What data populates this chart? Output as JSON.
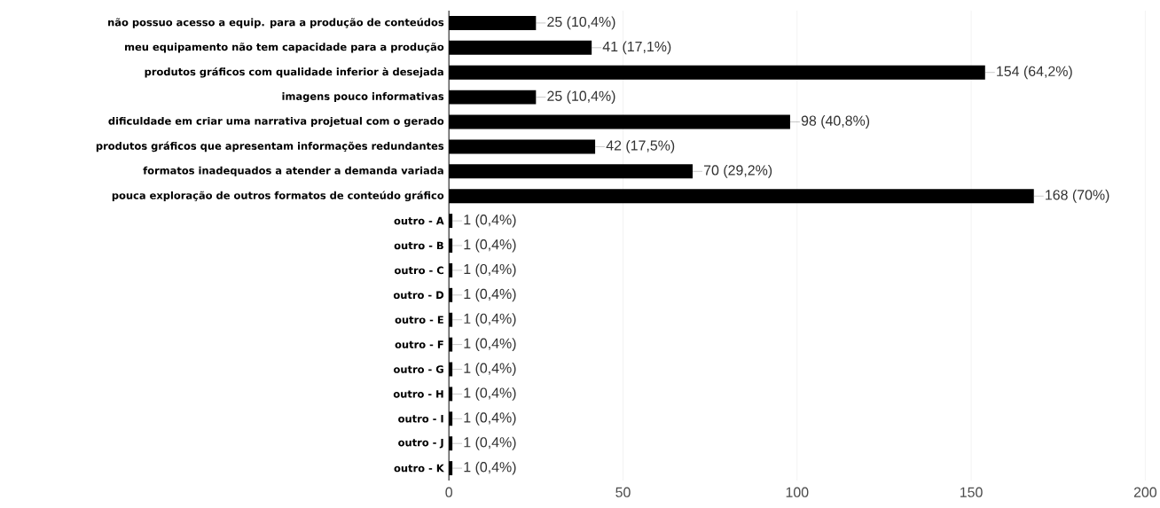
{
  "chart_data": {
    "type": "bar",
    "orientation": "horizontal",
    "categories": [
      "não possuo acesso a equip. para a produção de conteúdos",
      "meu equipamento não tem capacidade para a produção",
      "produtos gráficos com qualidade inferior à desejada",
      "imagens pouco informativas",
      "dificuldade em criar uma narrativa projetual com o gerado",
      "produtos gráficos que apresentam informações redundantes",
      "formatos inadequados a atender a demanda variada",
      "pouca exploração de outros formatos de conteúdo gráfico",
      "outro - A",
      "outro - B",
      "outro - C",
      "outro - D",
      "outro - E",
      "outro - F",
      "outro - G",
      "outro - H",
      "outro - I",
      "outro - J",
      "outro - K"
    ],
    "values": [
      25,
      41,
      154,
      25,
      98,
      42,
      70,
      168,
      1,
      1,
      1,
      1,
      1,
      1,
      1,
      1,
      1,
      1,
      1
    ],
    "value_labels": [
      "25 (10,4%)",
      "41 (17,1%)",
      "154 (64,2%)",
      "25 (10,4%)",
      "98 (40,8%)",
      "42 (17,5%)",
      "70 (29,2%)",
      "168 (70%)",
      "1 (0,4%)",
      "1 (0,4%)",
      "1 (0,4%)",
      "1 (0,4%)",
      "1 (0,4%)",
      "1 (0,4%)",
      "1 (0,4%)",
      "1 (0,4%)",
      "1 (0,4%)",
      "1 (0,4%)",
      "1 (0,4%)"
    ],
    "color": "#000000",
    "xlim": [
      0,
      200
    ],
    "xticks": [
      0,
      50,
      100,
      150,
      200
    ],
    "grid": "x"
  }
}
